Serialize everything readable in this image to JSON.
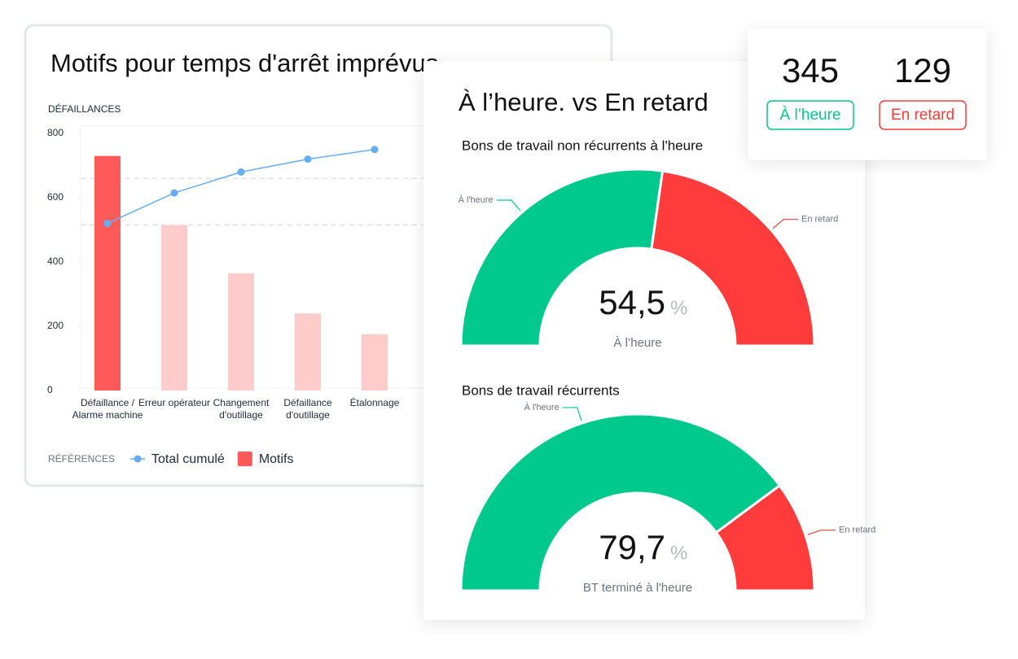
{
  "chart_data": [
    {
      "type": "bar",
      "title": "Motifs pour temps d'arrêt imprévus",
      "y_label": "DÉFAILLANCES",
      "categories": [
        "Défaillance / Alarme machine",
        "Erreur opérateur",
        "Changement d'outillage",
        "Défaillance d'outillage",
        "Étalonnage"
      ],
      "series": [
        {
          "name": "Motifs",
          "type": "bar",
          "color": "#ff5a5a",
          "colors": [
            "#ff5a5a",
            "#ffcccc",
            "#ffcccc",
            "#ffcccc",
            "#ffcccc"
          ],
          "values": [
            730,
            515,
            365,
            240,
            175
          ]
        },
        {
          "name": "Total cumulé",
          "type": "line",
          "color": "#64aef0",
          "values": [
            520,
            615,
            680,
            720,
            750
          ]
        }
      ],
      "reference_lines": [
        660,
        515
      ],
      "ylim": [
        0,
        800
      ],
      "yticks": [
        0,
        200,
        400,
        600,
        800
      ],
      "legend_title": "RÉFÉRENCES"
    },
    {
      "type": "gauge",
      "title": "Bons de travail non récurrents à l'heure",
      "value": 54.5,
      "value_label": "54,5",
      "unit": "%",
      "caption": "À l’heure",
      "labels": [
        "À l'heure",
        "En retard"
      ],
      "colors": [
        "#00c98d",
        "#ff3b3b"
      ]
    },
    {
      "type": "gauge",
      "title": "Bons de travail récurrents",
      "value": 79.7,
      "value_label": "79,7",
      "unit": "%",
      "caption": "BT terminé à l'heure",
      "labels": [
        "À l'heure",
        "En retard"
      ],
      "colors": [
        "#00c98d",
        "#ff3b3b"
      ]
    }
  ],
  "panel": {
    "title": "À l’heure. vs En retard"
  },
  "kpis": [
    {
      "value": 345,
      "label": "À l’heure",
      "color": "#00c98d"
    },
    {
      "value": 129,
      "label": "En retard",
      "color": "#ff3b3b"
    }
  ]
}
